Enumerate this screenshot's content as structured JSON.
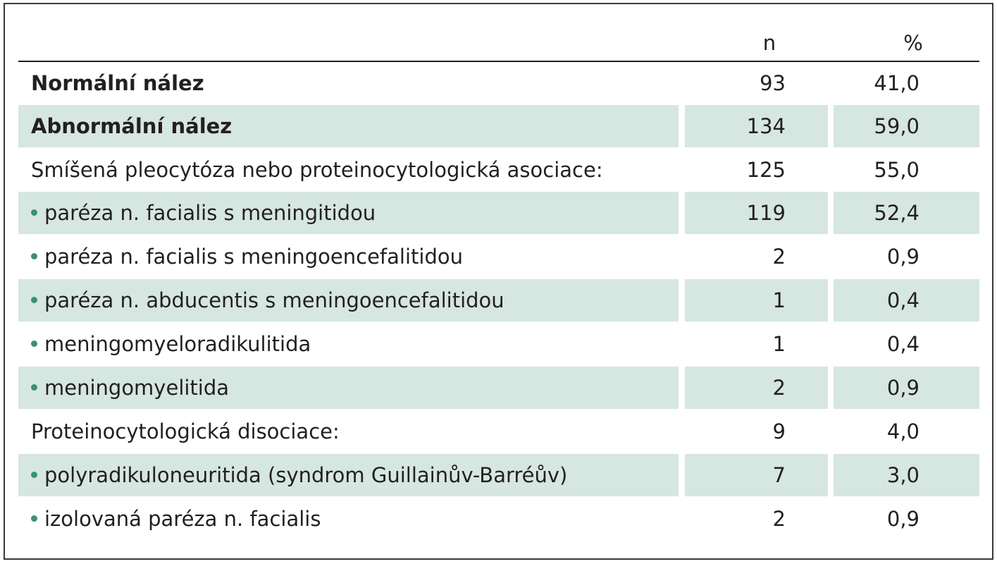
{
  "table": {
    "header": {
      "n": "n",
      "pct": "%"
    },
    "rows": [
      {
        "label": "Normální nález",
        "n": "93",
        "pct": "41,0"
      },
      {
        "label": "Abnormální nález",
        "n": "134",
        "pct": "59,0"
      },
      {
        "label": "Smíšená pleocytóza nebo proteinocytologická asociace:",
        "n": "125",
        "pct": "55,0"
      },
      {
        "label": "paréza n. facialis s meningitidou",
        "n": "119",
        "pct": "52,4"
      },
      {
        "label": "paréza n. facialis s meningoencefalitidou",
        "n": "2",
        "pct": "0,9"
      },
      {
        "label": "paréza n. abducentis s meningoencefalitidou",
        "n": "1",
        "pct": "0,4"
      },
      {
        "label": "meningomyeloradikulitida",
        "n": "1",
        "pct": "0,4"
      },
      {
        "label": "meningomyelitida",
        "n": "2",
        "pct": "0,9"
      },
      {
        "label": "Proteinocytologická disociace:",
        "n": "9",
        "pct": "4,0"
      },
      {
        "label": "polyradikuloneuritida (syndrom Guillainův-Barréův)",
        "n": "7",
        "pct": "3,0"
      },
      {
        "label": "izolovaná paréza n. facialis",
        "n": "2",
        "pct": "0,9"
      }
    ]
  }
}
